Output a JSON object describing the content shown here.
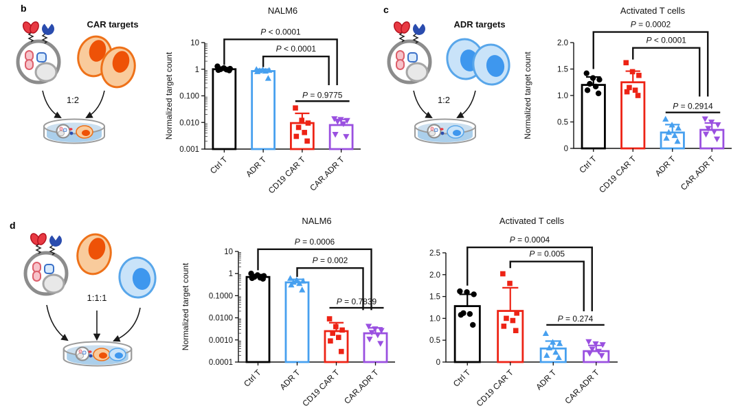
{
  "panels": {
    "b": {
      "label": "b",
      "schematic": {
        "targets_label": "CAR targets",
        "targets_label_color": "#f03a2b",
        "ratio_label": "1:2"
      }
    },
    "c": {
      "label": "c",
      "schematic": {
        "targets_label": "ADR targets",
        "targets_label_color": "#4a90dd",
        "ratio_label": "1:2"
      }
    },
    "d": {
      "label": "d",
      "schematic": {
        "ratio_label": "1:1:1"
      }
    }
  },
  "chart_data": [
    {
      "panel": "b",
      "type": "bar",
      "title": "NALM6",
      "ylabel": "Normalized target count",
      "scale": "log",
      "ylim": [
        0.001,
        10
      ],
      "grid": false,
      "yticks": [
        {
          "v": 10,
          "label": "10"
        },
        {
          "v": 1,
          "label": "1"
        },
        {
          "v": 0.1,
          "label": "0.100"
        },
        {
          "v": 0.01,
          "label": "0.010"
        },
        {
          "v": 0.001,
          "label": "0.001"
        }
      ],
      "categories": [
        "Ctrl T",
        "ADR T",
        "CD19 CAR T",
        "CAR.ADR T"
      ],
      "series": [
        {
          "name": "Ctrl T",
          "color": "#000000",
          "marker": "circle",
          "mean": 1.0,
          "error_top": 1.12,
          "points": [
            1.28,
            1.1,
            1.04,
            1.0,
            0.97,
            0.93,
            0.9
          ]
        },
        {
          "name": "ADR T",
          "color": "#47a0ef",
          "marker": "triangle-up",
          "mean": 0.85,
          "error_top": 1.0,
          "points": [
            0.97,
            0.93,
            0.9,
            0.87,
            0.84,
            0.8,
            0.45
          ]
        },
        {
          "name": "CD19 CAR T",
          "color": "#ed2315",
          "marker": "square",
          "mean": 0.0095,
          "error_top": 0.022,
          "points": [
            0.035,
            0.012,
            0.0095,
            0.0065,
            0.0042,
            0.003,
            0.002
          ]
        },
        {
          "name": "CAR.ADR T",
          "color": "#9a50e0",
          "marker": "triangle-down",
          "mean": 0.008,
          "error_top": 0.013,
          "points": [
            0.014,
            0.013,
            0.012,
            0.011,
            0.009,
            0.0036,
            0.003
          ]
        }
      ],
      "comparisons": [
        {
          "a": 0,
          "b": 3,
          "label": "P < 0.0001",
          "y": 1.03,
          "a_end": 0.79,
          "b_end": 0.6,
          "b_dx": -6
        },
        {
          "a": 1,
          "b": 3,
          "label": "P < 0.0001",
          "y": 0.87,
          "a_end": 0.77,
          "b_end": 0.6,
          "b_dx": -18
        },
        {
          "a": 2,
          "b": 3,
          "label": "P = 0.9775",
          "y": 0.45,
          "line_only": true
        }
      ]
    },
    {
      "panel": "c",
      "type": "bar",
      "title": "Activated T cells",
      "ylabel": "Normalized target count",
      "scale": "linear",
      "ylim": [
        0,
        2.0
      ],
      "grid": false,
      "yticks": [
        {
          "v": 2.0,
          "label": "2.0"
        },
        {
          "v": 1.5,
          "label": "1.5"
        },
        {
          "v": 1.0,
          "label": "1.0"
        },
        {
          "v": 0.5,
          "label": "0.5"
        },
        {
          "v": 0,
          "label": "0"
        }
      ],
      "categories": [
        "Ctrl T",
        "CD19 CAR T",
        "ADR T",
        "CAR.ADR T"
      ],
      "series": [
        {
          "name": "Ctrl T",
          "color": "#000000",
          "marker": "circle",
          "mean": 1.2,
          "error_top": 1.35,
          "points": [
            1.42,
            1.33,
            1.3,
            1.22,
            1.17,
            1.1,
            1.04
          ]
        },
        {
          "name": "CD19 CAR T",
          "color": "#ed2315",
          "marker": "square",
          "mean": 1.25,
          "error_top": 1.46,
          "points": [
            1.62,
            1.45,
            1.38,
            1.15,
            1.1,
            1.07,
            1.0
          ]
        },
        {
          "name": "ADR T",
          "color": "#47a0ef",
          "marker": "triangle-up",
          "mean": 0.3,
          "error_top": 0.45,
          "points": [
            0.55,
            0.44,
            0.38,
            0.3,
            0.24,
            0.19,
            0.13
          ]
        },
        {
          "name": "CAR.ADR T",
          "color": "#9a50e0",
          "marker": "triangle-down",
          "mean": 0.35,
          "error_top": 0.48,
          "points": [
            0.56,
            0.5,
            0.45,
            0.38,
            0.32,
            0.27,
            0.18
          ]
        }
      ],
      "comparisons": [
        {
          "a": 0,
          "b": 3,
          "label": "P = 0.0002",
          "y": 1.1,
          "a_end": 0.75,
          "b_end": 0.49,
          "b_dx": -6
        },
        {
          "a": 1,
          "b": 3,
          "label": "P < 0.0001",
          "y": 0.95,
          "a_end": 0.84,
          "b_end": 0.49,
          "b_dx": -18
        },
        {
          "a": 2,
          "b": 3,
          "label": "P = 0.2914",
          "y": 0.34,
          "line_only": true
        }
      ]
    },
    {
      "panel": "d",
      "type": "bar",
      "title": "NALM6",
      "ylabel": "Normalized target count",
      "scale": "log",
      "ylim": [
        0.0001,
        10
      ],
      "grid": false,
      "yticks": [
        {
          "v": 10,
          "label": "10"
        },
        {
          "v": 1,
          "label": "1"
        },
        {
          "v": 0.1,
          "label": "0.1000"
        },
        {
          "v": 0.01,
          "label": "0.0100"
        },
        {
          "v": 0.001,
          "label": "0.0010"
        },
        {
          "v": 0.0001,
          "label": "0.0001"
        }
      ],
      "categories": [
        "Ctrl T",
        "ADR T",
        "CD19 CAR T",
        "CAR.ADR T"
      ],
      "series": [
        {
          "name": "Ctrl T",
          "color": "#000000",
          "marker": "circle",
          "mean": 0.7,
          "error_top": 0.9,
          "points": [
            1.0,
            0.85,
            0.78,
            0.7,
            0.65,
            0.62,
            0.58
          ]
        },
        {
          "name": "ADR T",
          "color": "#47a0ef",
          "marker": "triangle-up",
          "mean": 0.4,
          "error_top": 0.55,
          "points": [
            0.6,
            0.5,
            0.45,
            0.4,
            0.35,
            0.3,
            0.18
          ]
        },
        {
          "name": "CD19 CAR T",
          "color": "#ed2315",
          "marker": "square",
          "mean": 0.0025,
          "error_top": 0.006,
          "points": [
            0.009,
            0.004,
            0.0028,
            0.002,
            0.0013,
            0.0009,
            0.0003
          ]
        },
        {
          "name": "CAR.ADR T",
          "color": "#9a50e0",
          "marker": "triangle-down",
          "mean": 0.002,
          "error_top": 0.0035,
          "points": [
            0.0042,
            0.0032,
            0.0027,
            0.0022,
            0.0017,
            0.0011,
            0.0007
          ]
        }
      ],
      "comparisons": [
        {
          "a": 0,
          "b": 3,
          "label": "P = 0.0006",
          "y": 1.02,
          "a_end": 0.83,
          "b_end": 0.47,
          "b_dx": -6
        },
        {
          "a": 1,
          "b": 3,
          "label": "P = 0.002",
          "y": 0.85,
          "a_end": 0.77,
          "b_end": 0.47,
          "b_dx": -18
        },
        {
          "a": 2,
          "b": 3,
          "label": "P = 0.7839",
          "y": 0.49,
          "line_only": true
        }
      ]
    },
    {
      "panel": "d",
      "type": "bar",
      "title": "Activated T cells",
      "ylabel": "",
      "scale": "linear",
      "ylim": [
        0,
        2.5
      ],
      "grid": false,
      "yticks": [
        {
          "v": 2.5,
          "label": "2.5"
        },
        {
          "v": 2.0,
          "label": "2.0"
        },
        {
          "v": 1.5,
          "label": "1.5"
        },
        {
          "v": 1.0,
          "label": "1.0"
        },
        {
          "v": 0.5,
          "label": "0.5"
        },
        {
          "v": 0,
          "label": "0"
        }
      ],
      "categories": [
        "Ctrl T",
        "CD19 CAR T",
        "ADR T",
        "CAR.ADR T"
      ],
      "series": [
        {
          "name": "Ctrl T",
          "color": "#000000",
          "marker": "circle",
          "mean": 1.28,
          "error_top": 1.55,
          "points": [
            1.62,
            1.6,
            1.55,
            1.12,
            1.1,
            1.08,
            0.85
          ]
        },
        {
          "name": "CD19 CAR T",
          "color": "#ed2315",
          "marker": "square",
          "mean": 1.17,
          "error_top": 1.7,
          "points": [
            2.02,
            1.8,
            1.12,
            1.0,
            0.95,
            0.82,
            0.72
          ]
        },
        {
          "name": "ADR T",
          "color": "#47a0ef",
          "marker": "triangle-up",
          "mean": 0.31,
          "error_top": 0.48,
          "points": [
            0.65,
            0.45,
            0.42,
            0.32,
            0.22,
            0.15,
            0.1
          ]
        },
        {
          "name": "CAR.ADR T",
          "color": "#9a50e0",
          "marker": "triangle-down",
          "mean": 0.25,
          "error_top": 0.38,
          "points": [
            0.47,
            0.42,
            0.4,
            0.3,
            0.25,
            0.2,
            0.15
          ]
        }
      ],
      "comparisons": [
        {
          "a": 0,
          "b": 3,
          "label": "P = 0.0004",
          "y": 1.05,
          "a_end": 0.7,
          "b_end": 0.465,
          "b_dx": -6
        },
        {
          "a": 1,
          "b": 3,
          "label": "P = 0.005",
          "y": 0.92,
          "a_end": 0.86,
          "b_end": 0.465,
          "b_dx": -18
        },
        {
          "a": 2,
          "b": 3,
          "label": "P = 0.274",
          "y": 0.34,
          "line_only": true
        }
      ]
    }
  ]
}
